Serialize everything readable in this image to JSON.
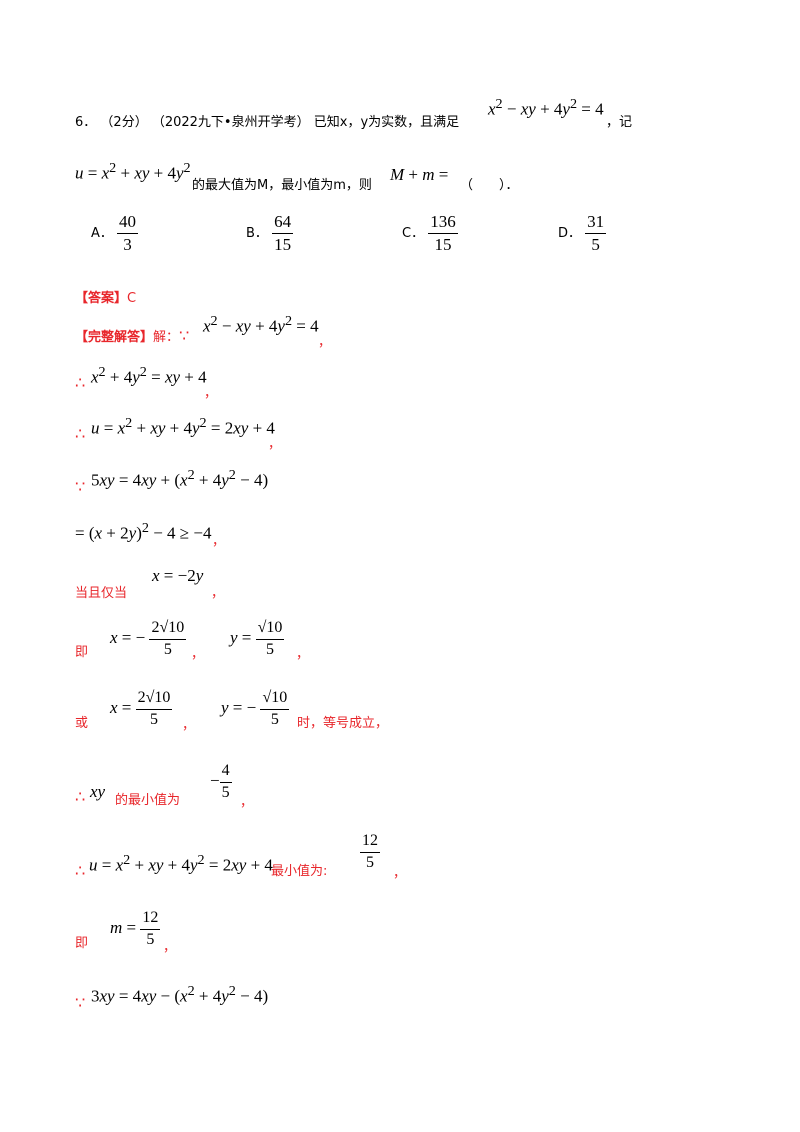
{
  "question": {
    "number": "6．",
    "score": "（2分）",
    "source": "（2022九下•泉州开学考）",
    "text_1": "已知x，y为实数，且满足",
    "text_2": "，记",
    "text_3": "的最大值为M，最小值为m，则",
    "text_4": "（　　）．",
    "options": [
      {
        "label": "A．",
        "num": "40",
        "den": "3"
      },
      {
        "label": "B．",
        "num": "64",
        "den": "15"
      },
      {
        "label": "C．",
        "num": "136",
        "den": "15"
      },
      {
        "label": "D．",
        "num": "31",
        "den": "5"
      }
    ]
  },
  "answer": {
    "tag": "【答案】",
    "value": "C"
  },
  "solution": {
    "tag": "【完整解答】",
    "jie": "解：",
    "comma": "，",
    "when": "当且仅当",
    "ji": "即",
    "huo": "或",
    "equality": "时，等号成立，",
    "min_of": "的最小值为",
    "min_is": "最小值为:",
    "frac_2sqrt10": {
      "num": "2√10",
      "den": "5"
    },
    "frac_sqrt10": {
      "num": "√10",
      "den": "5"
    },
    "frac_4": {
      "num": "4",
      "den": "5"
    },
    "frac_12": {
      "num": "12",
      "den": "5"
    }
  }
}
